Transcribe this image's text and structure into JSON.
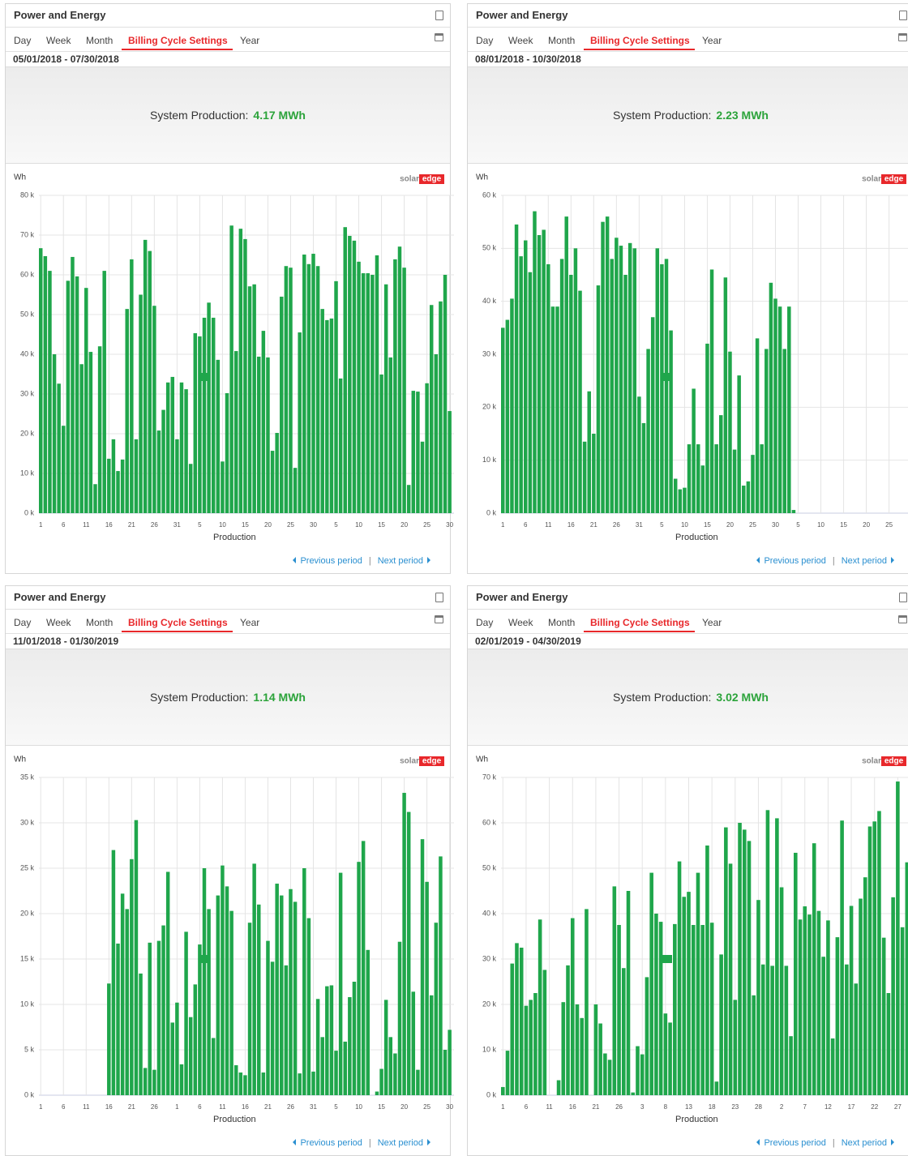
{
  "panels": [
    {
      "title": "Power and Energy",
      "tabs": [
        "Day",
        "Week",
        "Month",
        "Billing Cycle Settings",
        "Year"
      ],
      "active_tab": 3,
      "date_range": "05/01/2018 - 07/30/2018",
      "summary_label": "System Production:",
      "summary_value": "4.17 MWh",
      "nav": {
        "previous": "Previous period",
        "separator": "|",
        "next": "Next period"
      }
    },
    {
      "title": "Power and Energy",
      "tabs": [
        "Day",
        "Week",
        "Month",
        "Billing Cycle Settings",
        "Year"
      ],
      "active_tab": 3,
      "date_range": "08/01/2018 - 10/30/2018",
      "summary_label": "System Production:",
      "summary_value": "2.23 MWh",
      "nav": {
        "previous": "Previous period",
        "separator": "|",
        "next": "Next period"
      }
    },
    {
      "title": "Power and Energy",
      "tabs": [
        "Day",
        "Week",
        "Month",
        "Billing Cycle Settings",
        "Year"
      ],
      "active_tab": 3,
      "date_range": "11/01/2018 - 01/30/2019",
      "summary_label": "System Production:",
      "summary_value": "1.14 MWh",
      "nav": {
        "previous": "Previous period",
        "separator": "|",
        "next": "Next period"
      }
    },
    {
      "title": "Power and Energy",
      "tabs": [
        "Day",
        "Week",
        "Month",
        "Billing Cycle Settings",
        "Year"
      ],
      "active_tab": 3,
      "date_range": "02/01/2019 - 04/30/2019",
      "summary_label": "System Production:",
      "summary_value": "3.02 MWh",
      "nav": {
        "previous": "Previous period",
        "separator": "|",
        "next": "Next period"
      }
    }
  ],
  "brand": [
    "solar",
    "edge"
  ],
  "chart_data": [
    {
      "type": "bar",
      "y_label": "Wh",
      "grid": true,
      "categories": [
        "1",
        null,
        null,
        null,
        null,
        "6",
        null,
        null,
        null,
        null,
        "11",
        null,
        null,
        null,
        null,
        "16",
        null,
        null,
        null,
        null,
        "21",
        null,
        null,
        null,
        null,
        "26",
        null,
        null,
        null,
        null,
        "31",
        null,
        null,
        null,
        null,
        "5",
        null,
        null,
        null,
        null,
        "10",
        null,
        null,
        null,
        null,
        "15",
        null,
        null,
        null,
        null,
        "20",
        null,
        null,
        null,
        null,
        "25",
        null,
        null,
        null,
        null,
        "30",
        null,
        null,
        null,
        null,
        "5",
        null,
        null,
        null,
        null,
        "10",
        null,
        null,
        null,
        null,
        "15",
        null,
        null,
        null,
        null,
        "20",
        null,
        null,
        null,
        null,
        "25",
        null,
        null,
        null,
        null,
        "30"
      ],
      "series": [
        {
          "name": "Production",
          "color": "#1fa64b",
          "values": [
            66700,
            64700,
            61000,
            40000,
            32600,
            22000,
            58500,
            64500,
            59600,
            37500,
            56700,
            40600,
            7300,
            42000,
            61000,
            13700,
            18600,
            10600,
            13500,
            51400,
            63900,
            18600,
            55000,
            68800,
            66000,
            52200,
            20800,
            26000,
            32900,
            34300,
            18600,
            32900,
            31200,
            12400,
            45300,
            44500,
            49200,
            53000,
            49200,
            38600,
            13000,
            30200,
            72400,
            40800,
            71600,
            69000,
            57100,
            57600,
            39400,
            45900,
            39200,
            15700,
            20200,
            54500,
            62200,
            61800,
            11400,
            45500,
            65100,
            62700,
            65300,
            62200,
            51400,
            48600,
            49000,
            58400,
            33900,
            72000,
            69800,
            68600,
            63300,
            60400,
            60400,
            60000,
            64900,
            34900,
            57600,
            39200,
            63900,
            67100,
            61800,
            7100,
            30800,
            30600,
            18000,
            32700,
            52400,
            40000,
            53300,
            60000,
            25700
          ]
        }
      ],
      "ylim": [
        0,
        80000
      ],
      "yticks": [
        {
          "value": 0,
          "label": "0 k"
        },
        {
          "value": 10000,
          "label": "10 k"
        },
        {
          "value": 20000,
          "label": "20 k"
        },
        {
          "value": 30000,
          "label": "30 k"
        },
        {
          "value": 40000,
          "label": "40 k"
        },
        {
          "value": 50000,
          "label": "50 k"
        },
        {
          "value": 60000,
          "label": "60 k"
        },
        {
          "value": 70000,
          "label": "70 k"
        },
        {
          "value": 80000,
          "label": "80 k"
        }
      ]
    },
    {
      "type": "bar",
      "y_label": "Wh",
      "grid": true,
      "categories": [
        "1",
        null,
        null,
        null,
        null,
        "6",
        null,
        null,
        null,
        null,
        "11",
        null,
        null,
        null,
        null,
        "16",
        null,
        null,
        null,
        null,
        "21",
        null,
        null,
        null,
        null,
        "26",
        null,
        null,
        null,
        null,
        "31",
        null,
        null,
        null,
        null,
        "5",
        null,
        null,
        null,
        null,
        "10",
        null,
        null,
        null,
        null,
        "15",
        null,
        null,
        null,
        null,
        "20",
        null,
        null,
        null,
        null,
        "25",
        null,
        null,
        null,
        null,
        "30",
        null,
        null,
        null,
        null,
        "5",
        null,
        null,
        null,
        null,
        "10",
        null,
        null,
        null,
        null,
        "15",
        null,
        null,
        null,
        null,
        "20",
        null,
        null,
        null,
        null,
        "25",
        null,
        null,
        null,
        null,
        "30"
      ],
      "series": [
        {
          "name": "Production",
          "color": "#1fa64b",
          "values": [
            35000,
            36500,
            40500,
            54500,
            48500,
            51500,
            45500,
            57000,
            52500,
            53500,
            47000,
            39000,
            39000,
            48000,
            56000,
            45000,
            50000,
            42000,
            13500,
            23000,
            15000,
            43000,
            55000,
            56000,
            48000,
            52000,
            50500,
            45000,
            51000,
            50000,
            22000,
            17000,
            31000,
            37000,
            50000,
            47000,
            48000,
            34500,
            6500,
            4500,
            4800,
            13000,
            23500,
            13000,
            9000,
            32000,
            46000,
            13000,
            18500,
            44500,
            30500,
            12000,
            26000,
            5200,
            6000,
            11000,
            33000,
            13000,
            31000,
            43500,
            40500,
            39000,
            31000,
            39000,
            600,
            null,
            null,
            null,
            null,
            null,
            null,
            null,
            null,
            null,
            null,
            null,
            null,
            null,
            null,
            null,
            null,
            null,
            null,
            null,
            null,
            null,
            null,
            null,
            null,
            null,
            null
          ]
        }
      ],
      "ylim": [
        0,
        60000
      ],
      "yticks": [
        {
          "value": 0,
          "label": "0 k"
        },
        {
          "value": 10000,
          "label": "10 k"
        },
        {
          "value": 20000,
          "label": "20 k"
        },
        {
          "value": 30000,
          "label": "30 k"
        },
        {
          "value": 40000,
          "label": "40 k"
        },
        {
          "value": 50000,
          "label": "50 k"
        },
        {
          "value": 60000,
          "label": "60 k"
        }
      ]
    },
    {
      "type": "bar",
      "y_label": "Wh",
      "grid": true,
      "categories": [
        "1",
        null,
        null,
        null,
        null,
        "6",
        null,
        null,
        null,
        null,
        "11",
        null,
        null,
        null,
        null,
        "16",
        null,
        null,
        null,
        null,
        "21",
        null,
        null,
        null,
        null,
        "26",
        null,
        null,
        null,
        null,
        "1",
        null,
        null,
        null,
        null,
        "6",
        null,
        null,
        null,
        null,
        "11",
        null,
        null,
        null,
        null,
        "16",
        null,
        null,
        null,
        null,
        "21",
        null,
        null,
        null,
        null,
        "26",
        null,
        null,
        null,
        null,
        "31",
        null,
        null,
        null,
        null,
        "5",
        null,
        null,
        null,
        null,
        "10",
        null,
        null,
        null,
        null,
        "15",
        null,
        null,
        null,
        null,
        "20",
        null,
        null,
        null,
        null,
        "25",
        null,
        null,
        null,
        null,
        "30"
      ],
      "series": [
        {
          "name": "Production",
          "color": "#1fa64b",
          "values": [
            0,
            0,
            0,
            0,
            0,
            0,
            0,
            0,
            0,
            0,
            0,
            0,
            0,
            0,
            0,
            12300,
            27000,
            16700,
            22200,
            20500,
            26000,
            30300,
            13400,
            3000,
            16800,
            2800,
            17000,
            18700,
            24600,
            8000,
            10200,
            3400,
            18000,
            8600,
            12200,
            16600,
            25000,
            20500,
            6300,
            22000,
            25300,
            23000,
            20300,
            3300,
            2500,
            2200,
            19000,
            25500,
            21000,
            2500,
            17000,
            14700,
            23300,
            22000,
            14300,
            22700,
            21300,
            2400,
            25000,
            19500,
            2600,
            10600,
            6400,
            12000,
            12100,
            4900,
            24500,
            5900,
            10800,
            12500,
            25700,
            28000,
            16000,
            0,
            400,
            2900,
            10500,
            6400,
            4600,
            16900,
            33300,
            31200,
            11400,
            2800,
            28200,
            23500,
            11000,
            19000,
            26300,
            5000,
            7200
          ]
        }
      ],
      "ylim": [
        0,
        35000
      ],
      "yticks": [
        {
          "value": 0,
          "label": "0 k"
        },
        {
          "value": 5000,
          "label": "5 k"
        },
        {
          "value": 10000,
          "label": "10 k"
        },
        {
          "value": 15000,
          "label": "15 k"
        },
        {
          "value": 20000,
          "label": "20 k"
        },
        {
          "value": 25000,
          "label": "25 k"
        },
        {
          "value": 30000,
          "label": "30 k"
        },
        {
          "value": 35000,
          "label": "35 k"
        }
      ]
    },
    {
      "type": "bar",
      "y_label": "Wh",
      "grid": true,
      "categories": [
        "1",
        null,
        null,
        null,
        null,
        "6",
        null,
        null,
        null,
        null,
        "11",
        null,
        null,
        null,
        null,
        "16",
        null,
        null,
        null,
        null,
        "21",
        null,
        null,
        null,
        null,
        "26",
        null,
        null,
        null,
        null,
        "3",
        null,
        null,
        null,
        null,
        "8",
        null,
        null,
        null,
        null,
        "13",
        null,
        null,
        null,
        null,
        "18",
        null,
        null,
        null,
        null,
        "23",
        null,
        null,
        null,
        null,
        "28",
        null,
        null,
        null,
        null,
        "2",
        null,
        null,
        null,
        null,
        "7",
        null,
        null,
        null,
        null,
        "12",
        null,
        null,
        null,
        null,
        "17",
        null,
        null,
        null,
        null,
        "22",
        null,
        null,
        null,
        null,
        "27",
        null,
        null,
        null
      ],
      "series": [
        {
          "name": "Production",
          "color": "#1fa64b",
          "values": [
            1800,
            9800,
            29000,
            33500,
            32500,
            19700,
            21000,
            22500,
            38700,
            27600,
            0,
            0,
            3300,
            20500,
            28600,
            39000,
            20000,
            17000,
            41000,
            0,
            20000,
            15800,
            9200,
            7800,
            46000,
            37500,
            28000,
            45000,
            600,
            10800,
            9000,
            26000,
            49000,
            40000,
            38200,
            18000,
            16000,
            37700,
            51500,
            43700,
            44800,
            37500,
            49000,
            37500,
            55000,
            38000,
            3000,
            31000,
            59000,
            51000,
            21000,
            60000,
            58500,
            56000,
            22000,
            43000,
            28800,
            62800,
            28500,
            61000,
            45800,
            28500,
            13000,
            53400,
            38700,
            41600,
            39800,
            55500,
            40600,
            30500,
            38500,
            12500,
            34800,
            60500,
            28800,
            41700,
            24600,
            43300,
            48000,
            59200,
            60300,
            62600,
            34700,
            22500,
            43600,
            69100,
            37000,
            51300,
            40000
          ]
        }
      ],
      "ylim": [
        0,
        70000
      ],
      "yticks": [
        {
          "value": 0,
          "label": "0 k"
        },
        {
          "value": 10000,
          "label": "10 k"
        },
        {
          "value": 20000,
          "label": "20 k"
        },
        {
          "value": 30000,
          "label": "30 k"
        },
        {
          "value": 40000,
          "label": "40 k"
        },
        {
          "value": 50000,
          "label": "50 k"
        },
        {
          "value": 60000,
          "label": "60 k"
        },
        {
          "value": 70000,
          "label": "70 k"
        }
      ]
    }
  ]
}
